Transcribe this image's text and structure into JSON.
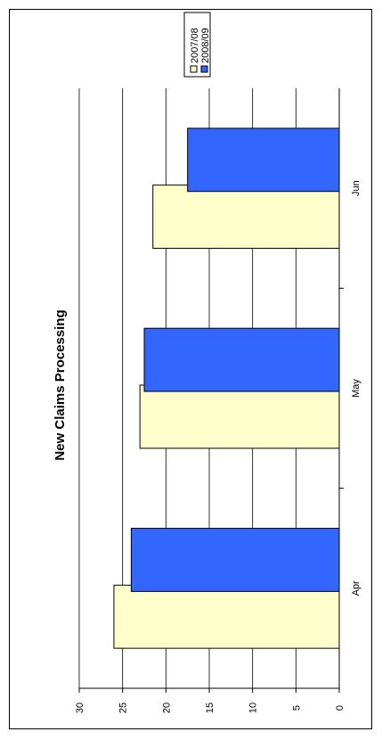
{
  "chart_data": {
    "type": "bar",
    "title": "New Claims Processing",
    "categories": [
      "Apr",
      "May",
      "Jun"
    ],
    "series": [
      {
        "name": "2007/08",
        "values": [
          26,
          23,
          21.5
        ],
        "color": "#FFFFCC"
      },
      {
        "name": "2008/09",
        "values": [
          24,
          22.5,
          17.5
        ],
        "color": "#3366FF"
      }
    ],
    "ylim": [
      0,
      30
    ],
    "yticks": [
      "0",
      "5",
      "10",
      "15",
      "20",
      "25",
      "30"
    ],
    "grid": true,
    "legend_position": "top-right",
    "orientation": "rotated"
  }
}
